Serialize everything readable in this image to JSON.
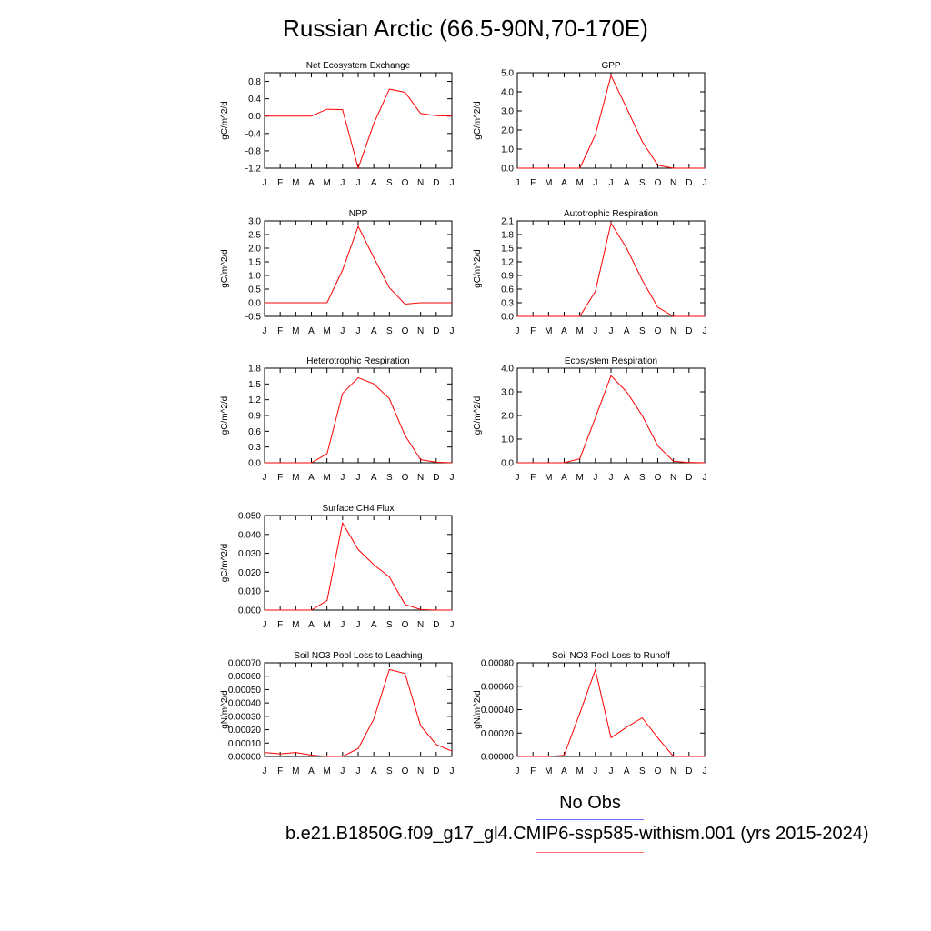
{
  "figure": {
    "title": "Russian Arctic (66.5-90N,70-170E)",
    "legend": {
      "title": "No Obs",
      "model_label": "b.e21.B1850G.f09_g17_gl4.CMIP6-ssp585-withism.001 (yrs 2015-2024)",
      "obs_color": "#6b6bff",
      "model_color": "#ff6b6b"
    },
    "line_color": "#ff0000"
  },
  "chart_data": [
    {
      "type": "line",
      "title": "Net Ecosystem Exchange",
      "ylabel": "gC/m^2/d",
      "x": [
        "J",
        "F",
        "M",
        "A",
        "M",
        "J",
        "J",
        "A",
        "S",
        "O",
        "N",
        "D",
        "J"
      ],
      "values": [
        0.0,
        0.0,
        0.0,
        0.0,
        0.16,
        0.15,
        -1.2,
        -0.17,
        0.62,
        0.55,
        0.06,
        0.01,
        0.0
      ],
      "ylim": [
        -1.2,
        1.0
      ],
      "yticks": [
        "0.8",
        "0.4",
        "0.0",
        "-0.4",
        "-0.8",
        "-1.2"
      ]
    },
    {
      "type": "line",
      "title": "GPP",
      "ylabel": "gC/m^2/d",
      "x": [
        "J",
        "F",
        "M",
        "A",
        "M",
        "J",
        "J",
        "A",
        "S",
        "O",
        "N",
        "D",
        "J"
      ],
      "values": [
        0.0,
        0.0,
        0.0,
        0.0,
        0.0,
        1.75,
        4.85,
        3.15,
        1.4,
        0.15,
        0.0,
        0.0,
        0.0
      ],
      "ylim": [
        0.0,
        5.0
      ],
      "yticks": [
        "5.0",
        "4.0",
        "3.0",
        "2.0",
        "1.0",
        "0.0"
      ]
    },
    {
      "type": "line",
      "title": "NPP",
      "ylabel": "gC/m^2/d",
      "x": [
        "J",
        "F",
        "M",
        "A",
        "M",
        "J",
        "J",
        "A",
        "S",
        "O",
        "N",
        "D",
        "J"
      ],
      "values": [
        0.0,
        0.0,
        0.0,
        0.0,
        0.0,
        1.2,
        2.8,
        1.65,
        0.55,
        -0.05,
        0.0,
        0.0,
        0.0
      ],
      "ylim": [
        -0.5,
        3.0
      ],
      "yticks": [
        "3.0",
        "2.5",
        "2.0",
        "1.5",
        "1.0",
        "0.5",
        "0.0",
        "-0.5"
      ]
    },
    {
      "type": "line",
      "title": "Autotrophic Respiration",
      "ylabel": "gC/m^2/d",
      "x": [
        "J",
        "F",
        "M",
        "A",
        "M",
        "J",
        "J",
        "A",
        "S",
        "O",
        "N",
        "D",
        "J"
      ],
      "values": [
        0.0,
        0.0,
        0.0,
        0.0,
        0.0,
        0.55,
        2.05,
        1.5,
        0.8,
        0.2,
        0.0,
        0.0,
        0.0
      ],
      "ylim": [
        0.0,
        2.1
      ],
      "yticks": [
        "2.1",
        "1.8",
        "1.5",
        "1.2",
        "0.9",
        "0.6",
        "0.3",
        "0.0"
      ]
    },
    {
      "type": "line",
      "title": "Heterotrophic Respiration",
      "ylabel": "gC/m^2/d",
      "x": [
        "J",
        "F",
        "M",
        "A",
        "M",
        "J",
        "J",
        "A",
        "S",
        "O",
        "N",
        "D",
        "J"
      ],
      "values": [
        0.0,
        0.0,
        0.0,
        0.0,
        0.17,
        1.32,
        1.62,
        1.5,
        1.22,
        0.52,
        0.06,
        0.01,
        0.0
      ],
      "ylim": [
        0.0,
        1.8
      ],
      "yticks": [
        "1.8",
        "1.5",
        "1.2",
        "0.9",
        "0.6",
        "0.3",
        "0.0"
      ]
    },
    {
      "type": "line",
      "title": "Ecosystem Respiration",
      "ylabel": "gC/m^2/d",
      "x": [
        "J",
        "F",
        "M",
        "A",
        "M",
        "J",
        "J",
        "A",
        "S",
        "O",
        "N",
        "D",
        "J"
      ],
      "values": [
        0.0,
        0.0,
        0.0,
        0.0,
        0.17,
        1.9,
        3.68,
        3.0,
        2.0,
        0.72,
        0.06,
        0.01,
        0.0
      ],
      "ylim": [
        0.0,
        4.0
      ],
      "yticks": [
        "4.0",
        "3.0",
        "2.0",
        "1.0",
        "0.0"
      ]
    },
    {
      "type": "line",
      "title": "Surface CH4 Flux",
      "ylabel": "gC/m^2/d",
      "x": [
        "J",
        "F",
        "M",
        "A",
        "M",
        "J",
        "J",
        "A",
        "S",
        "O",
        "N",
        "D",
        "J"
      ],
      "values": [
        0.0,
        0.0,
        0.0,
        0.0,
        0.005,
        0.046,
        0.032,
        0.024,
        0.0175,
        0.003,
        0.0003,
        0.0,
        0.0
      ],
      "ylim": [
        0.0,
        0.05
      ],
      "yticks": [
        "0.050",
        "0.040",
        "0.030",
        "0.020",
        "0.010",
        "0.000"
      ]
    },
    {
      "type": "line",
      "title": "Soil NO3 Pool Loss to Leaching",
      "ylabel": "gN/m^2/d",
      "x": [
        "J",
        "F",
        "M",
        "A",
        "M",
        "J",
        "J",
        "A",
        "S",
        "O",
        "N",
        "D",
        "J"
      ],
      "values": [
        3e-05,
        2e-05,
        3e-05,
        1e-05,
        0.0,
        0.0,
        6e-05,
        0.00028,
        0.00065,
        0.00062,
        0.00023,
        9e-05,
        4e-05
      ],
      "ylim": [
        0.0,
        0.0007
      ],
      "yticks": [
        "0.00070",
        "0.00060",
        "0.00050",
        "0.00040",
        "0.00030",
        "0.00020",
        "0.00010",
        "0.00000"
      ]
    },
    {
      "type": "line",
      "title": "Soil NO3 Pool Loss to Runoff",
      "ylabel": "gN/m^2/d",
      "x": [
        "J",
        "F",
        "M",
        "A",
        "M",
        "J",
        "J",
        "A",
        "S",
        "O",
        "N",
        "D",
        "J"
      ],
      "values": [
        0.0,
        0.0,
        0.0,
        1e-05,
        0.00037,
        0.00074,
        0.00016,
        0.00025,
        0.00033,
        0.00016,
        0.0,
        0.0,
        0.0
      ],
      "ylim": [
        0.0,
        0.0008
      ],
      "yticks": [
        "0.00080",
        "0.00060",
        "0.00040",
        "0.00020",
        "0.00000"
      ]
    }
  ]
}
